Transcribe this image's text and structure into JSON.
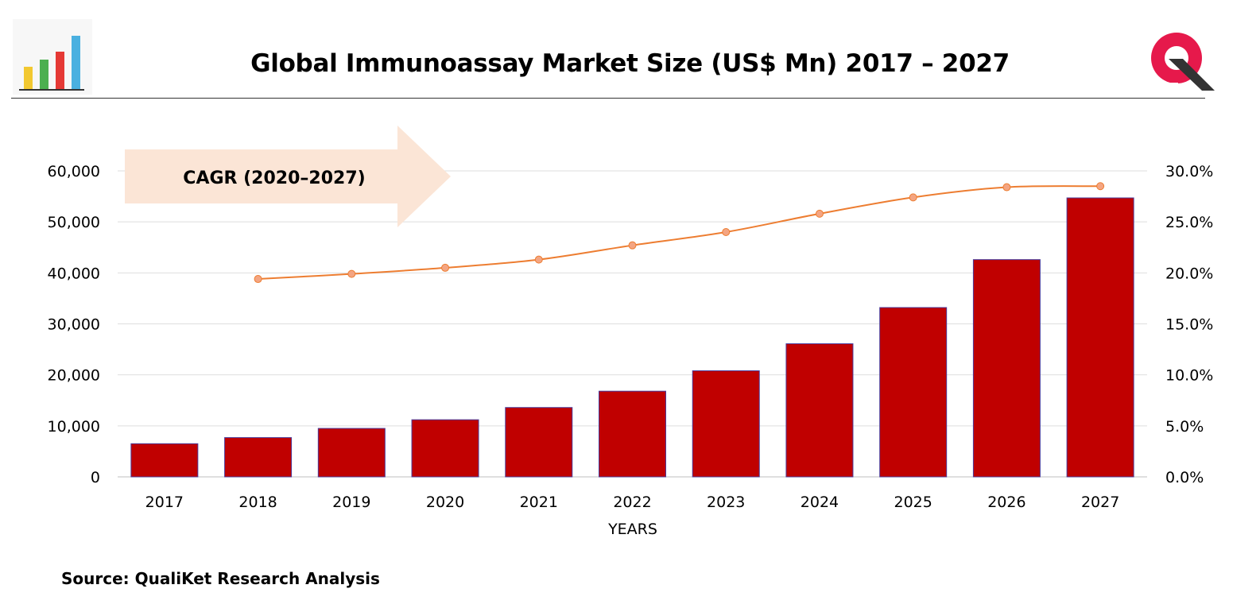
{
  "title": "Global Immunoassay Market Size (US$ Mn) 2017 – 2027",
  "source": "Source: QualiKet Research Analysis",
  "icons": {
    "left_logo": "bar-chart-icon",
    "right_logo": "qualiket-logo-icon"
  },
  "colors": {
    "bar": "#c00000",
    "bar_edge": "#4a3a9a",
    "line": "#ed7d31",
    "marker": "#f4a582",
    "arrow": "#fbe5d6",
    "logo": "#e6194b"
  },
  "annotation": "CAGR (2020–2027)",
  "chart_data": {
    "type": "bar",
    "categories": [
      "2017",
      "2018",
      "2019",
      "2020",
      "2021",
      "2022",
      "2023",
      "2024",
      "2025",
      "2026",
      "2027"
    ],
    "xlabel": "YEARS",
    "ylim": [
      0,
      60000
    ],
    "y_ticks": [
      "0",
      "10,000",
      "20,000",
      "30,000",
      "40,000",
      "50,000",
      "60,000"
    ],
    "y2lim": [
      0,
      30
    ],
    "y2_ticks": [
      "0.0%",
      "5.0%",
      "10.0%",
      "15.0%",
      "20.0%",
      "25.0%",
      "30.0%"
    ],
    "grid": true,
    "series": [
      {
        "type": "bar",
        "axis": "left",
        "values": [
          6500,
          7700,
          9500,
          11200,
          13600,
          16800,
          20800,
          26100,
          33200,
          42600,
          54700
        ]
      },
      {
        "type": "line",
        "axis": "right",
        "values": [
          null,
          19.4,
          19.9,
          20.5,
          21.3,
          22.7,
          24.0,
          25.8,
          27.4,
          28.4,
          28.5
        ]
      }
    ]
  }
}
